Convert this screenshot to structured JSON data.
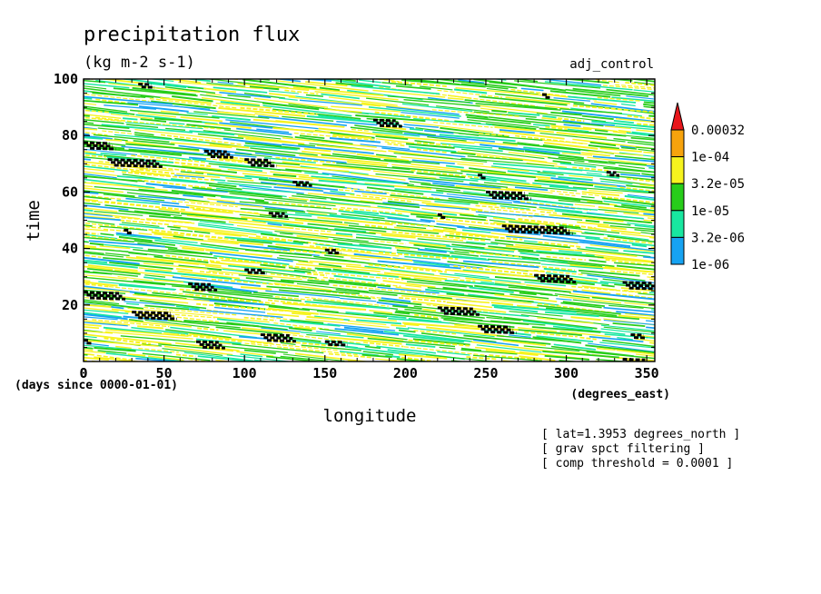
{
  "chart_data": {
    "type": "heatmap",
    "title": "precipitation flux",
    "units": "(kg m-2 s-1)",
    "case_label": "adj_control",
    "xlabel": "longitude",
    "x_units": "(degrees_east)",
    "ylabel": "time",
    "y_units": "(days since 0000-01-01)",
    "xlim": [
      0,
      355
    ],
    "ylim": [
      0,
      100
    ],
    "x_ticks": [
      "0",
      "50",
      "100",
      "150",
      "200",
      "250",
      "300",
      "350"
    ],
    "x_tick_values": [
      0,
      50,
      100,
      150,
      200,
      250,
      300,
      350
    ],
    "y_ticks": [
      "20",
      "40",
      "60",
      "80",
      "100"
    ],
    "y_tick_values": [
      20,
      40,
      60,
      80,
      100
    ],
    "colorbar": {
      "labels": [
        "0.00032",
        "1e-04",
        "3.2e-05",
        "1e-05",
        "3.2e-06",
        "1e-06"
      ],
      "colors": [
        "#e8161b",
        "#f7a30c",
        "#f6f31e",
        "#27cd1a",
        "#18e7a0",
        "#16a3f2"
      ]
    },
    "notes": [
      "[ lat=1.3953 degrees_north ]",
      "[ grav spct filtering ]",
      "[ comp threshold = 0.0001 ]"
    ],
    "pattern": "westward-propagating bands: contours tilt downward toward increasing longitude",
    "stripe_colors": [
      "#f6f31e",
      "#27cd1a",
      "#18e7a0",
      "#16a3f2"
    ],
    "stripe_weights": [
      0.38,
      0.34,
      0.18,
      0.1
    ],
    "threshold_marker_color": "#000000",
    "threshold_events": [
      {
        "lon": 34,
        "time": 98.2,
        "len": 8
      },
      {
        "lon": 285,
        "time": 94.5,
        "len": 4
      },
      {
        "lon": 180,
        "time": 85.5,
        "len": 14
      },
      {
        "lon": 0,
        "time": 77.5,
        "len": 16
      },
      {
        "lon": 75,
        "time": 74.5,
        "len": 14
      },
      {
        "lon": 100,
        "time": 71.5,
        "len": 16
      },
      {
        "lon": 15,
        "time": 71.5,
        "len": 30
      },
      {
        "lon": 130,
        "time": 63.5,
        "len": 10
      },
      {
        "lon": 245,
        "time": 66,
        "len": 3
      },
      {
        "lon": 325,
        "time": 67,
        "len": 6
      },
      {
        "lon": 250,
        "time": 60,
        "len": 24
      },
      {
        "lon": 115,
        "time": 52.5,
        "len": 10
      },
      {
        "lon": 220,
        "time": 52,
        "len": 4
      },
      {
        "lon": 260,
        "time": 48,
        "len": 40
      },
      {
        "lon": 25,
        "time": 46.5,
        "len": 4
      },
      {
        "lon": 150,
        "time": 39.5,
        "len": 8
      },
      {
        "lon": 100,
        "time": 32.5,
        "len": 12
      },
      {
        "lon": 280,
        "time": 30.5,
        "len": 22
      },
      {
        "lon": 335,
        "time": 28,
        "len": 18
      },
      {
        "lon": 65,
        "time": 27.5,
        "len": 14
      },
      {
        "lon": 0,
        "time": 24.5,
        "len": 22
      },
      {
        "lon": 220,
        "time": 19,
        "len": 22
      },
      {
        "lon": 30,
        "time": 17.5,
        "len": 24
      },
      {
        "lon": 245,
        "time": 12.5,
        "len": 20
      },
      {
        "lon": 110,
        "time": 9.5,
        "len": 18
      },
      {
        "lon": 70,
        "time": 7,
        "len": 14
      },
      {
        "lon": 150,
        "time": 7,
        "len": 12
      },
      {
        "lon": 340,
        "time": 9.5,
        "len": 8
      },
      {
        "lon": 335,
        "time": 0.8,
        "len": 14
      },
      {
        "lon": 0,
        "time": 7.5,
        "len": 3
      }
    ]
  }
}
